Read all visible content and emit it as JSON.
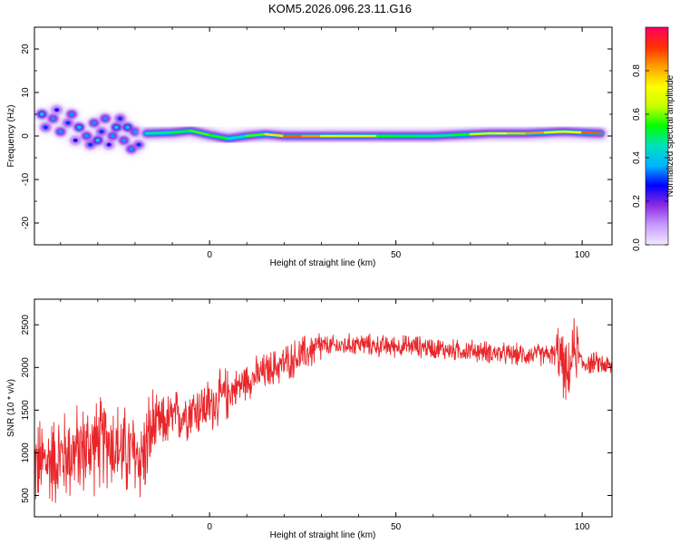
{
  "title": "KOM5.2026.096.23.11.G16",
  "chart_data": [
    {
      "type": "heatmap",
      "xlabel": "Height of straight line (km)",
      "ylabel": "Frequency (Hz)",
      "xlim": [
        -47,
        108
      ],
      "ylim": [
        -25,
        25
      ],
      "xticks": [
        0,
        50,
        100
      ],
      "yticks": [
        -20,
        -10,
        0,
        10,
        20
      ],
      "xtick_labels": [
        "0",
        "50",
        "100"
      ],
      "ytick_labels": [
        "-20",
        "-10",
        "0",
        "10",
        "20"
      ],
      "trace_description": "scattered blobs between -47 and -17 km, then a narrow band near 0 Hz to 108 km",
      "colorbar": {
        "label": "Normalized spectral amplitude",
        "range": [
          0,
          1
        ],
        "ticks": [
          0.0,
          0.2,
          0.4,
          0.6,
          0.8
        ],
        "tick_labels": [
          "0.0",
          "0.2",
          "0.4",
          "0.6",
          "0.8"
        ],
        "colors": [
          "#f2eaff",
          "#c79bff",
          "#8a2be2",
          "#0000ff",
          "#00b4ff",
          "#00e0c0",
          "#00ff00",
          "#c8ff00",
          "#ffff00",
          "#ffa000",
          "#ff3000",
          "#ff0060"
        ]
      },
      "band_points": [
        {
          "x": -17,
          "y": 0.6,
          "a": 0.35
        },
        {
          "x": -10,
          "y": 0.8,
          "a": 0.6
        },
        {
          "x": -5,
          "y": 1.2,
          "a": 0.45
        },
        {
          "x": 0,
          "y": 0.2,
          "a": 0.7
        },
        {
          "x": 5,
          "y": -0.6,
          "a": 0.4
        },
        {
          "x": 10,
          "y": 0.0,
          "a": 0.5
        },
        {
          "x": 15,
          "y": 0.4,
          "a": 0.65
        },
        {
          "x": 20,
          "y": 0.0,
          "a": 0.85
        },
        {
          "x": 25,
          "y": 0.0,
          "a": 0.9
        },
        {
          "x": 30,
          "y": 0.0,
          "a": 0.75
        },
        {
          "x": 35,
          "y": 0.0,
          "a": 0.6
        },
        {
          "x": 40,
          "y": 0.0,
          "a": 0.7
        },
        {
          "x": 45,
          "y": 0.0,
          "a": 0.6
        },
        {
          "x": 50,
          "y": 0.0,
          "a": 0.5
        },
        {
          "x": 55,
          "y": 0.0,
          "a": 0.55
        },
        {
          "x": 60,
          "y": 0.0,
          "a": 0.45
        },
        {
          "x": 65,
          "y": 0.2,
          "a": 0.5
        },
        {
          "x": 70,
          "y": 0.4,
          "a": 0.6
        },
        {
          "x": 75,
          "y": 0.6,
          "a": 0.7
        },
        {
          "x": 80,
          "y": 0.6,
          "a": 0.75
        },
        {
          "x": 85,
          "y": 0.6,
          "a": 0.8
        },
        {
          "x": 90,
          "y": 0.8,
          "a": 0.85
        },
        {
          "x": 95,
          "y": 1.0,
          "a": 0.5
        },
        {
          "x": 100,
          "y": 0.8,
          "a": 0.9
        },
        {
          "x": 105,
          "y": 0.6,
          "a": 0.85
        }
      ],
      "blob_points": [
        {
          "x": -45,
          "y": 5,
          "a": 0.35
        },
        {
          "x": -44,
          "y": 2,
          "a": 0.25
        },
        {
          "x": -42,
          "y": 4,
          "a": 0.3
        },
        {
          "x": -41,
          "y": 6,
          "a": 0.2
        },
        {
          "x": -40,
          "y": 1,
          "a": 0.3
        },
        {
          "x": -38,
          "y": 3,
          "a": 0.25
        },
        {
          "x": -37,
          "y": 5,
          "a": 0.3
        },
        {
          "x": -36,
          "y": -1,
          "a": 0.2
        },
        {
          "x": -35,
          "y": 2,
          "a": 0.35
        },
        {
          "x": -33,
          "y": 0,
          "a": 0.3
        },
        {
          "x": -32,
          "y": -2,
          "a": 0.25
        },
        {
          "x": -31,
          "y": 3,
          "a": 0.3
        },
        {
          "x": -30,
          "y": -1,
          "a": 0.35
        },
        {
          "x": -29,
          "y": 1,
          "a": 0.25
        },
        {
          "x": -28,
          "y": 4,
          "a": 0.3
        },
        {
          "x": -27,
          "y": -2,
          "a": 0.2
        },
        {
          "x": -26,
          "y": 0,
          "a": 0.3
        },
        {
          "x": -25,
          "y": 2,
          "a": 0.35
        },
        {
          "x": -24,
          "y": 4,
          "a": 0.25
        },
        {
          "x": -23,
          "y": -1,
          "a": 0.3
        },
        {
          "x": -22,
          "y": 2,
          "a": 0.35
        },
        {
          "x": -21,
          "y": -3,
          "a": 0.3
        },
        {
          "x": -20,
          "y": 1,
          "a": 0.3
        },
        {
          "x": -19,
          "y": -2,
          "a": 0.25
        }
      ]
    },
    {
      "type": "line",
      "xlabel": "Height of straight line (km)",
      "ylabel": "SNR (10 * v/v)",
      "xlim": [
        -47,
        108
      ],
      "ylim": [
        250,
        2800
      ],
      "xticks": [
        0,
        50,
        100
      ],
      "yticks": [
        500,
        1000,
        1500,
        2000,
        2500
      ],
      "xtick_labels": [
        "0",
        "50",
        "100"
      ],
      "ytick_labels": [
        "500",
        "1000",
        "1500",
        "2000",
        "2500"
      ],
      "color": "#e8262a",
      "series": [
        {
          "name": "SNR",
          "x": [
            -47,
            -40,
            -33,
            -27,
            -23,
            -18,
            -15,
            -10,
            -5,
            0,
            5,
            10,
            15,
            20,
            25,
            30,
            35,
            40,
            45,
            50,
            55,
            60,
            65,
            70,
            75,
            80,
            85,
            90,
            94,
            96,
            98,
            100,
            105,
            108
          ],
          "values": [
            850,
            950,
            1050,
            1150,
            1000,
            950,
            1300,
            1400,
            1500,
            1550,
            1700,
            1850,
            1950,
            2050,
            2150,
            2250,
            2250,
            2280,
            2250,
            2250,
            2250,
            2230,
            2200,
            2200,
            2180,
            2150,
            2150,
            2150,
            2150,
            1850,
            2250,
            2050,
            2050,
            2000
          ]
        }
      ]
    }
  ]
}
